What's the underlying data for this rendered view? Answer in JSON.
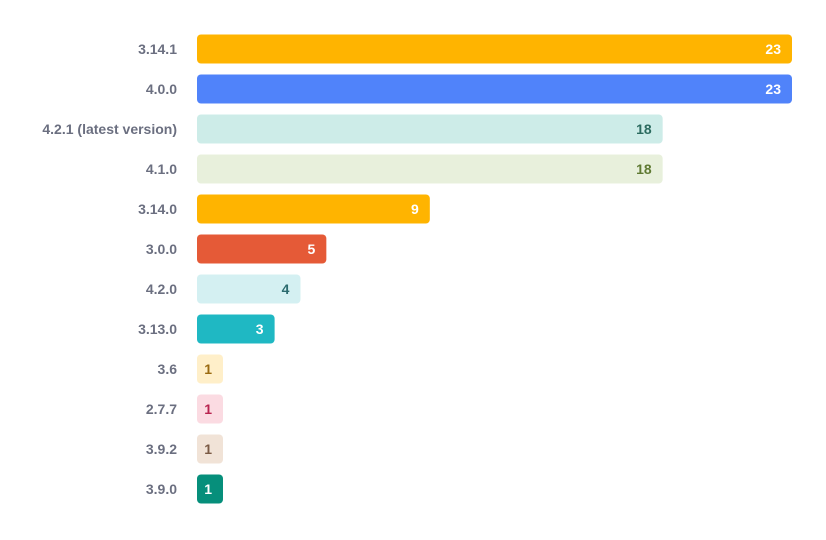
{
  "chart_data": {
    "type": "bar",
    "orientation": "horizontal",
    "title": "",
    "xlabel": "",
    "ylabel": "",
    "grid": false,
    "legend": "none",
    "xlim": [
      0,
      23
    ],
    "categories": [
      "3.14.1",
      "4.0.0",
      "4.2.1 (latest version)",
      "4.1.0",
      "3.14.0",
      "3.0.0",
      "4.2.0",
      "3.13.0",
      "3.6",
      "2.7.7",
      "3.9.2",
      "3.9.0"
    ],
    "values": [
      23,
      23,
      18,
      18,
      9,
      5,
      4,
      3,
      1,
      1,
      1,
      1
    ],
    "value_labels": [
      "23",
      "23",
      "18",
      "18",
      "9",
      "5",
      "4",
      "3",
      "1",
      "1",
      "1",
      "1"
    ],
    "bar_colors": [
      "#ffb400",
      "#5083fa",
      "#cdece8",
      "#e8f0dc",
      "#ffb400",
      "#e55a37",
      "#d4f0f2",
      "#1fb8c3",
      "#ffefc9",
      "#fbdbe2",
      "#f1e3d7",
      "#068f7b"
    ],
    "label_colors": [
      "#ffffff",
      "#ffffff",
      "#2b6b5f",
      "#5f7a33",
      "#ffffff",
      "#ffffff",
      "#2b6b6f",
      "#ffffff",
      "#9a6a10",
      "#b8234f",
      "#7a5a44",
      "#ffffff"
    ],
    "category_label_color": "#6b6f80"
  }
}
